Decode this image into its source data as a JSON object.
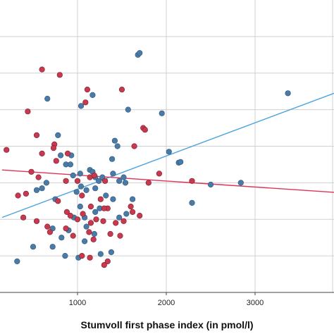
{
  "chart_data": {
    "type": "scatter",
    "xlabel": "Stumvoll first phase index (in pmol/l)",
    "ylabel": "",
    "x_ticks": [
      1000,
      2000,
      3000
    ],
    "x_tick_labels": [
      "1000",
      "2000",
      "3000"
    ],
    "xlim": [
      150,
      4000
    ],
    "ylim": [
      0,
      8
    ],
    "grid": true,
    "colors": {
      "blue": "#4a7ba6",
      "red": "#c8384e",
      "blue_line": "#4aa3df",
      "red_line": "#e0335a",
      "grid": "#d0d0d0",
      "axis": "#444444"
    },
    "series": [
      {
        "color": "blue",
        "points": [
          [
            660,
            5.3
          ],
          [
            780,
            4.3
          ],
          [
            1170,
            5.4
          ],
          [
            1680,
            6.5
          ],
          [
            1700,
            6.55
          ],
          [
            1040,
            5.1
          ],
          [
            1570,
            5.0
          ],
          [
            1950,
            4.9
          ],
          [
            3370,
            5.45
          ],
          [
            1420,
            4.15
          ],
          [
            1450,
            4.0
          ],
          [
            1390,
            3.65
          ],
          [
            2030,
            3.85
          ],
          [
            2140,
            3.55
          ],
          [
            2160,
            3.57
          ],
          [
            2500,
            2.95
          ],
          [
            2840,
            3.0
          ],
          [
            2290,
            2.45
          ],
          [
            810,
            3.75
          ],
          [
            930,
            3.75
          ],
          [
            870,
            3.5
          ],
          [
            920,
            3.5
          ],
          [
            950,
            3.2
          ],
          [
            1030,
            3.25
          ],
          [
            1140,
            3.35
          ],
          [
            1170,
            3.3
          ],
          [
            1200,
            3.15
          ],
          [
            1240,
            3.05
          ],
          [
            1280,
            3.15
          ],
          [
            1400,
            3.25
          ],
          [
            1470,
            3.05
          ],
          [
            1540,
            3.0
          ],
          [
            1520,
            3.15
          ],
          [
            1200,
            2.85
          ],
          [
            1100,
            2.8
          ],
          [
            1040,
            2.9
          ],
          [
            990,
            2.75
          ],
          [
            650,
            3.0
          ],
          [
            600,
            2.85
          ],
          [
            540,
            2.8
          ],
          [
            750,
            2.55
          ],
          [
            1320,
            2.65
          ],
          [
            1400,
            2.55
          ],
          [
            1620,
            2.55
          ],
          [
            1250,
            2.3
          ],
          [
            1470,
            2.05
          ],
          [
            1550,
            2.15
          ],
          [
            1080,
            2.05
          ],
          [
            960,
            2.05
          ],
          [
            900,
            1.7
          ],
          [
            820,
            1.5
          ],
          [
            1080,
            1.4
          ],
          [
            1190,
            1.6
          ],
          [
            1200,
            2.2
          ],
          [
            860,
            1.0
          ],
          [
            1010,
            0.95
          ],
          [
            500,
            1.25
          ],
          [
            320,
            0.85
          ],
          [
            720,
            1.25
          ],
          [
            1380,
            1.1
          ],
          [
            1260,
            1.05
          ],
          [
            1100,
            1.8
          ],
          [
            1030,
            2.35
          ],
          [
            720,
            1.75
          ]
        ]
      },
      {
        "color": "red",
        "points": [
          [
            600,
            6.1
          ],
          [
            800,
            5.95
          ],
          [
            1110,
            5.55
          ],
          [
            1500,
            5.55
          ],
          [
            440,
            4.95
          ],
          [
            1090,
            5.2
          ],
          [
            1740,
            4.5
          ],
          [
            1760,
            4.45
          ],
          [
            540,
            4.3
          ],
          [
            200,
            3.9
          ],
          [
            740,
            4.05
          ],
          [
            730,
            3.95
          ],
          [
            600,
            3.8
          ],
          [
            760,
            3.6
          ],
          [
            890,
            3.8
          ],
          [
            1640,
            4.0
          ],
          [
            480,
            3.3
          ],
          [
            560,
            3.15
          ],
          [
            870,
            3.05
          ],
          [
            1000,
            3.05
          ],
          [
            1140,
            3.15
          ],
          [
            1190,
            3.2
          ],
          [
            1310,
            3.05
          ],
          [
            1800,
            3.0
          ],
          [
            1920,
            3.25
          ],
          [
            2290,
            3.05
          ],
          [
            420,
            2.7
          ],
          [
            1050,
            2.65
          ],
          [
            1260,
            2.55
          ],
          [
            1150,
            2.35
          ],
          [
            1340,
            2.3
          ],
          [
            1600,
            2.35
          ],
          [
            920,
            2.1
          ],
          [
            880,
            2.2
          ],
          [
            1300,
            2.3
          ],
          [
            1430,
            1.9
          ],
          [
            1520,
            1.95
          ],
          [
            1210,
            2.0
          ],
          [
            1290,
            1.95
          ],
          [
            1620,
            2.2
          ],
          [
            1700,
            2.1
          ],
          [
            540,
            1.95
          ],
          [
            390,
            2.05
          ],
          [
            690,
            1.65
          ],
          [
            660,
            1.8
          ],
          [
            870,
            1.75
          ],
          [
            950,
            1.55
          ],
          [
            1130,
            1.65
          ],
          [
            1180,
            1.45
          ],
          [
            1370,
            1.6
          ],
          [
            1480,
            1.55
          ],
          [
            1050,
            1.0
          ],
          [
            1140,
            0.95
          ],
          [
            1300,
            0.75
          ],
          [
            1340,
            0.85
          ],
          [
            1150,
            1.9
          ],
          [
            1060,
            2.15
          ],
          [
            780,
            2.5
          ],
          [
            330,
            2.65
          ],
          [
            1000,
            2.0
          ]
        ]
      }
    ],
    "fit_lines": [
      {
        "color": "blue_line",
        "x": [
          150,
          4000
        ],
        "y": [
          2.05,
          5.55
        ]
      },
      {
        "color": "red_line",
        "x": [
          150,
          4000
        ],
        "y": [
          3.35,
          2.72
        ]
      }
    ]
  }
}
